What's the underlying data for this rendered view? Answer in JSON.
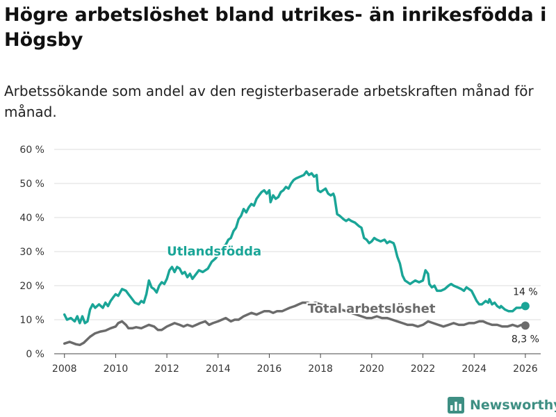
{
  "title": "Högre arbetslöshet bland utrikes- än inrikesfödda i Högsby",
  "subtitle": "Arbetssökande som andel av den registerbaserade arbetskraften månad för månad.",
  "brand": {
    "name": "Newsworthy",
    "icon": "bar-chart-icon"
  },
  "colors": {
    "foreign": "#1aa597",
    "total": "#6b6b6b",
    "grid": "#dddddd",
    "brand": "#3e8f83"
  },
  "chart_data": {
    "type": "line",
    "xlabel": "",
    "ylabel": "",
    "xlim": [
      2007.6,
      2026.6
    ],
    "ylim": [
      0,
      60
    ],
    "x_ticks": [
      {
        "value": 2008,
        "label": "2008"
      },
      {
        "value": 2010,
        "label": "2010"
      },
      {
        "value": 2012,
        "label": "2012"
      },
      {
        "value": 2014,
        "label": "2014"
      },
      {
        "value": 2016,
        "label": "2016"
      },
      {
        "value": 2018,
        "label": "2018"
      },
      {
        "value": 2020,
        "label": "2020"
      },
      {
        "value": 2022,
        "label": "2022"
      },
      {
        "value": 2024,
        "label": "2024"
      },
      {
        "value": 2026,
        "label": "2026"
      }
    ],
    "y_ticks": [
      {
        "value": 0,
        "label": "0 %"
      },
      {
        "value": 10,
        "label": "10 %"
      },
      {
        "value": 20,
        "label": "20 %"
      },
      {
        "value": 30,
        "label": "30 %"
      },
      {
        "value": 40,
        "label": "40 %"
      },
      {
        "value": 50,
        "label": "50 %"
      },
      {
        "value": 60,
        "label": "60 %"
      }
    ],
    "grid": true,
    "series": [
      {
        "name": "Utlandsfödda",
        "color": "#1aa597",
        "end_label": "14 %",
        "points": [
          [
            2008.0,
            11.5
          ],
          [
            2008.1,
            10.0
          ],
          [
            2008.25,
            10.5
          ],
          [
            2008.4,
            9.5
          ],
          [
            2008.5,
            11.0
          ],
          [
            2008.6,
            9.0
          ],
          [
            2008.7,
            11.0
          ],
          [
            2008.8,
            9.0
          ],
          [
            2008.9,
            9.5
          ],
          [
            2009.0,
            13.0
          ],
          [
            2009.1,
            14.5
          ],
          [
            2009.2,
            13.5
          ],
          [
            2009.35,
            14.5
          ],
          [
            2009.5,
            13.5
          ],
          [
            2009.6,
            15.0
          ],
          [
            2009.7,
            14.0
          ],
          [
            2009.8,
            15.5
          ],
          [
            2009.9,
            16.5
          ],
          [
            2010.0,
            17.5
          ],
          [
            2010.1,
            17.0
          ],
          [
            2010.25,
            19.0
          ],
          [
            2010.4,
            18.5
          ],
          [
            2010.5,
            17.5
          ],
          [
            2010.6,
            16.5
          ],
          [
            2010.75,
            15.0
          ],
          [
            2010.9,
            14.5
          ],
          [
            2011.0,
            15.5
          ],
          [
            2011.1,
            15.0
          ],
          [
            2011.2,
            17.5
          ],
          [
            2011.3,
            21.5
          ],
          [
            2011.4,
            19.5
          ],
          [
            2011.5,
            19.0
          ],
          [
            2011.6,
            18.0
          ],
          [
            2011.7,
            20.0
          ],
          [
            2011.8,
            21.0
          ],
          [
            2011.9,
            20.5
          ],
          [
            2012.0,
            22.0
          ],
          [
            2012.1,
            24.5
          ],
          [
            2012.2,
            25.5
          ],
          [
            2012.3,
            24.0
          ],
          [
            2012.4,
            25.5
          ],
          [
            2012.5,
            25.0
          ],
          [
            2012.6,
            23.5
          ],
          [
            2012.7,
            24.0
          ],
          [
            2012.8,
            22.5
          ],
          [
            2012.9,
            23.5
          ],
          [
            2013.0,
            22.0
          ],
          [
            2013.1,
            23.0
          ],
          [
            2013.25,
            24.5
          ],
          [
            2013.4,
            24.0
          ],
          [
            2013.5,
            24.5
          ],
          [
            2013.6,
            25.0
          ],
          [
            2013.75,
            27.0
          ],
          [
            2013.9,
            28.0
          ],
          [
            2014.0,
            29.0
          ],
          [
            2014.1,
            30.0
          ],
          [
            2014.2,
            31.5
          ],
          [
            2014.3,
            32.0
          ],
          [
            2014.4,
            33.5
          ],
          [
            2014.5,
            34.0
          ],
          [
            2014.6,
            36.0
          ],
          [
            2014.7,
            37.0
          ],
          [
            2014.8,
            39.5
          ],
          [
            2014.9,
            40.5
          ],
          [
            2015.0,
            42.5
          ],
          [
            2015.1,
            41.5
          ],
          [
            2015.2,
            43.0
          ],
          [
            2015.3,
            44.0
          ],
          [
            2015.4,
            43.5
          ],
          [
            2015.5,
            45.5
          ],
          [
            2015.6,
            46.5
          ],
          [
            2015.7,
            47.5
          ],
          [
            2015.8,
            48.0
          ],
          [
            2015.9,
            47.0
          ],
          [
            2016.0,
            48.0
          ],
          [
            2016.05,
            44.5
          ],
          [
            2016.15,
            46.5
          ],
          [
            2016.25,
            45.5
          ],
          [
            2016.35,
            46.0
          ],
          [
            2016.45,
            47.5
          ],
          [
            2016.55,
            48.0
          ],
          [
            2016.65,
            49.0
          ],
          [
            2016.75,
            48.5
          ],
          [
            2016.85,
            50.0
          ],
          [
            2016.95,
            51.0
          ],
          [
            2017.05,
            51.5
          ],
          [
            2017.2,
            52.0
          ],
          [
            2017.35,
            52.5
          ],
          [
            2017.45,
            53.5
          ],
          [
            2017.55,
            52.5
          ],
          [
            2017.65,
            53.0
          ],
          [
            2017.75,
            52.0
          ],
          [
            2017.85,
            52.5
          ],
          [
            2017.9,
            48.0
          ],
          [
            2018.0,
            47.5
          ],
          [
            2018.1,
            48.0
          ],
          [
            2018.2,
            48.5
          ],
          [
            2018.3,
            47.0
          ],
          [
            2018.4,
            46.5
          ],
          [
            2018.5,
            47.0
          ],
          [
            2018.55,
            46.0
          ],
          [
            2018.65,
            41.0
          ],
          [
            2018.75,
            40.5
          ],
          [
            2018.9,
            39.5
          ],
          [
            2019.0,
            39.0
          ],
          [
            2019.1,
            39.5
          ],
          [
            2019.2,
            39.0
          ],
          [
            2019.35,
            38.5
          ],
          [
            2019.5,
            37.5
          ],
          [
            2019.6,
            37.0
          ],
          [
            2019.7,
            34.0
          ],
          [
            2019.8,
            33.5
          ],
          [
            2019.9,
            32.5
          ],
          [
            2020.0,
            33.0
          ],
          [
            2020.1,
            34.0
          ],
          [
            2020.2,
            33.5
          ],
          [
            2020.35,
            33.0
          ],
          [
            2020.5,
            33.5
          ],
          [
            2020.6,
            32.5
          ],
          [
            2020.7,
            33.0
          ],
          [
            2020.85,
            32.5
          ],
          [
            2020.9,
            31.5
          ],
          [
            2021.0,
            28.5
          ],
          [
            2021.1,
            26.5
          ],
          [
            2021.2,
            23.0
          ],
          [
            2021.3,
            21.5
          ],
          [
            2021.4,
            21.0
          ],
          [
            2021.5,
            20.5
          ],
          [
            2021.6,
            21.0
          ],
          [
            2021.7,
            21.5
          ],
          [
            2021.85,
            21.0
          ],
          [
            2022.0,
            21.5
          ],
          [
            2022.1,
            24.5
          ],
          [
            2022.2,
            23.5
          ],
          [
            2022.25,
            20.5
          ],
          [
            2022.35,
            19.5
          ],
          [
            2022.45,
            20.0
          ],
          [
            2022.55,
            18.5
          ],
          [
            2022.7,
            18.5
          ],
          [
            2022.85,
            19.0
          ],
          [
            2023.0,
            20.0
          ],
          [
            2023.1,
            20.5
          ],
          [
            2023.2,
            20.0
          ],
          [
            2023.35,
            19.5
          ],
          [
            2023.5,
            19.0
          ],
          [
            2023.6,
            18.5
          ],
          [
            2023.7,
            19.5
          ],
          [
            2023.8,
            19.0
          ],
          [
            2023.9,
            18.5
          ],
          [
            2024.0,
            17.0
          ],
          [
            2024.1,
            15.5
          ],
          [
            2024.2,
            14.5
          ],
          [
            2024.3,
            14.5
          ],
          [
            2024.45,
            15.5
          ],
          [
            2024.55,
            15.0
          ],
          [
            2024.6,
            16.0
          ],
          [
            2024.7,
            14.5
          ],
          [
            2024.8,
            15.0
          ],
          [
            2024.9,
            14.0
          ],
          [
            2025.0,
            13.5
          ],
          [
            2025.05,
            14.0
          ],
          [
            2025.2,
            13.0
          ],
          [
            2025.35,
            12.5
          ],
          [
            2025.5,
            12.5
          ],
          [
            2025.65,
            13.5
          ],
          [
            2025.8,
            13.5
          ],
          [
            2026.0,
            14.0
          ]
        ]
      },
      {
        "name": "Total arbetslöshet",
        "color": "#6b6b6b",
        "end_label": "8,3 %",
        "points": [
          [
            2008.0,
            3.0
          ],
          [
            2008.2,
            3.5
          ],
          [
            2008.45,
            2.8
          ],
          [
            2008.6,
            2.6
          ],
          [
            2008.75,
            3.2
          ],
          [
            2009.0,
            5.0
          ],
          [
            2009.2,
            6.0
          ],
          [
            2009.4,
            6.5
          ],
          [
            2009.6,
            6.8
          ],
          [
            2009.8,
            7.5
          ],
          [
            2010.0,
            8.0
          ],
          [
            2010.1,
            9.0
          ],
          [
            2010.25,
            9.5
          ],
          [
            2010.4,
            8.5
          ],
          [
            2010.5,
            7.5
          ],
          [
            2010.65,
            7.5
          ],
          [
            2010.8,
            7.8
          ],
          [
            2011.0,
            7.5
          ],
          [
            2011.15,
            8.0
          ],
          [
            2011.3,
            8.5
          ],
          [
            2011.5,
            8.0
          ],
          [
            2011.65,
            7.0
          ],
          [
            2011.8,
            7.0
          ],
          [
            2012.0,
            8.0
          ],
          [
            2012.15,
            8.5
          ],
          [
            2012.3,
            9.0
          ],
          [
            2012.5,
            8.5
          ],
          [
            2012.65,
            8.0
          ],
          [
            2012.8,
            8.5
          ],
          [
            2013.0,
            8.0
          ],
          [
            2013.15,
            8.5
          ],
          [
            2013.3,
            9.0
          ],
          [
            2013.5,
            9.5
          ],
          [
            2013.65,
            8.5
          ],
          [
            2013.8,
            9.0
          ],
          [
            2014.0,
            9.5
          ],
          [
            2014.15,
            10.0
          ],
          [
            2014.3,
            10.5
          ],
          [
            2014.5,
            9.5
          ],
          [
            2014.65,
            10.0
          ],
          [
            2014.8,
            10.0
          ],
          [
            2015.0,
            11.0
          ],
          [
            2015.15,
            11.5
          ],
          [
            2015.3,
            12.0
          ],
          [
            2015.5,
            11.5
          ],
          [
            2015.65,
            12.0
          ],
          [
            2015.8,
            12.5
          ],
          [
            2016.0,
            12.5
          ],
          [
            2016.15,
            12.0
          ],
          [
            2016.3,
            12.5
          ],
          [
            2016.5,
            12.5
          ],
          [
            2016.65,
            13.0
          ],
          [
            2016.8,
            13.5
          ],
          [
            2017.0,
            14.0
          ],
          [
            2017.15,
            14.5
          ],
          [
            2017.3,
            15.0
          ],
          [
            2017.5,
            15.0
          ],
          [
            2017.65,
            14.5
          ],
          [
            2017.8,
            15.0
          ],
          [
            2018.0,
            14.5
          ],
          [
            2018.2,
            14.0
          ],
          [
            2018.4,
            13.5
          ],
          [
            2018.6,
            13.0
          ],
          [
            2018.8,
            13.0
          ],
          [
            2019.0,
            12.5
          ],
          [
            2019.2,
            12.0
          ],
          [
            2019.4,
            11.5
          ],
          [
            2019.6,
            11.0
          ],
          [
            2019.8,
            10.5
          ],
          [
            2020.0,
            10.5
          ],
          [
            2020.2,
            11.0
          ],
          [
            2020.4,
            10.5
          ],
          [
            2020.6,
            10.5
          ],
          [
            2020.8,
            10.0
          ],
          [
            2021.0,
            9.5
          ],
          [
            2021.2,
            9.0
          ],
          [
            2021.4,
            8.5
          ],
          [
            2021.6,
            8.5
          ],
          [
            2021.8,
            8.0
          ],
          [
            2022.0,
            8.5
          ],
          [
            2022.2,
            9.5
          ],
          [
            2022.4,
            9.0
          ],
          [
            2022.6,
            8.5
          ],
          [
            2022.8,
            8.0
          ],
          [
            2023.0,
            8.5
          ],
          [
            2023.2,
            9.0
          ],
          [
            2023.4,
            8.5
          ],
          [
            2023.6,
            8.5
          ],
          [
            2023.8,
            9.0
          ],
          [
            2024.0,
            9.0
          ],
          [
            2024.2,
            9.5
          ],
          [
            2024.35,
            9.5
          ],
          [
            2024.5,
            9.0
          ],
          [
            2024.7,
            8.5
          ],
          [
            2024.9,
            8.5
          ],
          [
            2025.1,
            8.0
          ],
          [
            2025.3,
            8.0
          ],
          [
            2025.5,
            8.5
          ],
          [
            2025.7,
            8.0
          ],
          [
            2025.85,
            8.5
          ],
          [
            2026.0,
            8.3
          ]
        ]
      }
    ]
  }
}
